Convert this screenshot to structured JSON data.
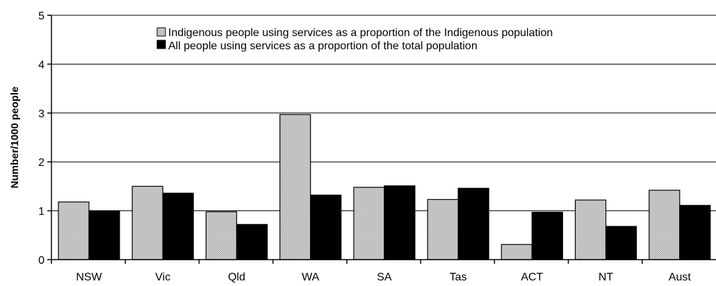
{
  "chart_data": {
    "type": "bar",
    "title": "",
    "xlabel": "",
    "ylabel": "Number/1000 people",
    "ylim": [
      0,
      5
    ],
    "yticks": [
      0,
      1,
      2,
      3,
      4,
      5
    ],
    "grid": true,
    "legend_position": "top-right",
    "categories": [
      "NSW",
      "Vic",
      "Qld",
      "WA",
      "SA",
      "Tas",
      "ACT",
      "NT",
      "Aust"
    ],
    "series": [
      {
        "name": "Indigenous people using services as a proportion of the Indigenous population",
        "color": "#c8c8c8",
        "pattern": "hatched-grey",
        "values": [
          1.18,
          1.5,
          0.98,
          2.97,
          1.48,
          1.23,
          0.31,
          1.22,
          1.42
        ]
      },
      {
        "name": "All people using services as a proportion of the total population",
        "color": "#000000",
        "pattern": "solid-black",
        "values": [
          1.0,
          1.36,
          0.72,
          1.32,
          1.51,
          1.46,
          0.97,
          0.68,
          1.11
        ]
      }
    ]
  }
}
